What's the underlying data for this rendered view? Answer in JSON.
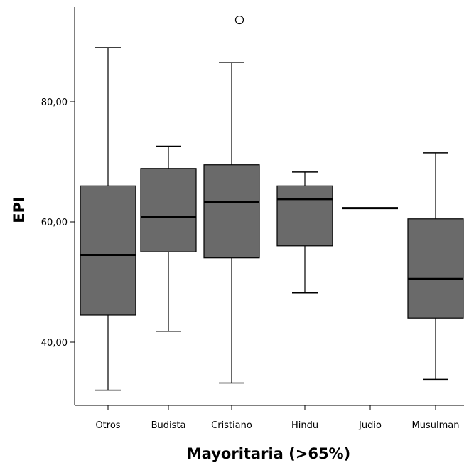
{
  "chart_data": {
    "type": "boxplot",
    "xlabel": "Mayoritaria (>65%)",
    "ylabel": "EPI",
    "ylim": [
      29,
      97
    ],
    "yticks": [
      {
        "value": 40,
        "label": "40,00"
      },
      {
        "value": 60,
        "label": "60,00"
      },
      {
        "value": 80,
        "label": "80,00"
      }
    ],
    "categories": [
      "Otros",
      "Budista",
      "Cristiano",
      "Hindu",
      "Judio",
      "Musulman"
    ],
    "boxes": [
      {
        "category": "Otros",
        "min": 32.0,
        "q1": 44.5,
        "median": 54.5,
        "q3": 66.0,
        "max": 89.0,
        "outliers": []
      },
      {
        "category": "Budista",
        "min": 41.8,
        "q1": 55.0,
        "median": 60.8,
        "q3": 68.9,
        "max": 72.6,
        "outliers": []
      },
      {
        "category": "Cristiano",
        "min": 33.2,
        "q1": 54.0,
        "median": 63.3,
        "q3": 69.5,
        "max": 86.5,
        "outliers": [
          93.6
        ]
      },
      {
        "category": "Hindu",
        "min": 48.2,
        "q1": 56.0,
        "median": 63.8,
        "q3": 66.0,
        "max": 68.3,
        "outliers": []
      },
      {
        "category": "Judio",
        "min": 62.3,
        "q1": 62.3,
        "median": 62.3,
        "q3": 62.3,
        "max": 62.3,
        "outliers": []
      },
      {
        "category": "Musulman",
        "min": 33.8,
        "q1": 44.0,
        "median": 50.5,
        "q3": 60.5,
        "max": 71.5,
        "outliers": []
      }
    ],
    "colors": {
      "box_fill": "#6a6a6a",
      "line": "#000000",
      "outlier_fill": "#ffffff"
    }
  }
}
